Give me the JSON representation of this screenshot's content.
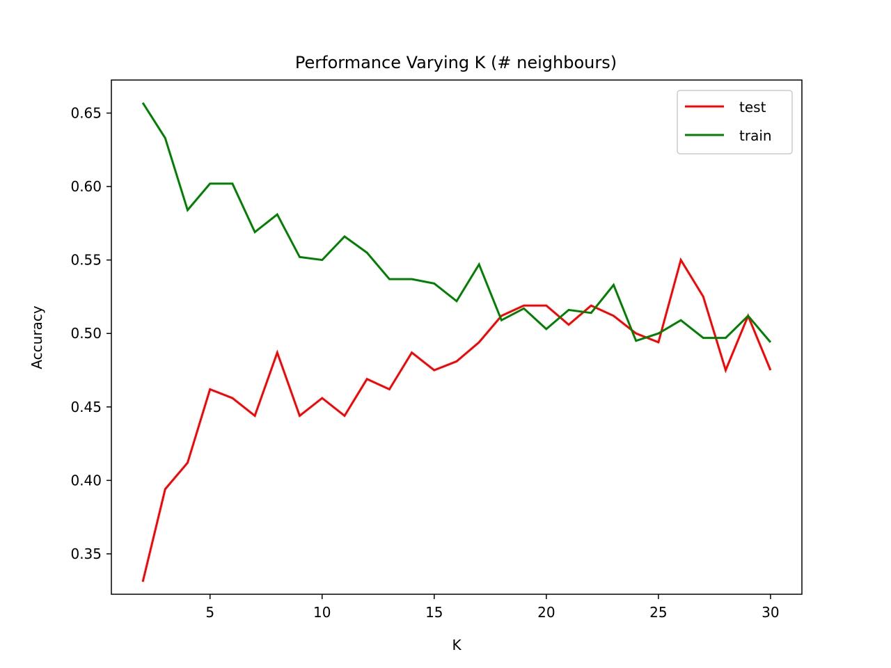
{
  "chart_data": {
    "type": "line",
    "title": "Performance Varying K (# neighbours)",
    "xlabel": "K",
    "ylabel": "Accuracy",
    "xlim": [
      0.6,
      31.4
    ],
    "ylim": [
      0.3225,
      0.6725
    ],
    "xticks": [
      5,
      10,
      15,
      20,
      25,
      30
    ],
    "xtick_labels": [
      "5",
      "10",
      "15",
      "20",
      "25",
      "30"
    ],
    "yticks": [
      0.35,
      0.4,
      0.45,
      0.5,
      0.55,
      0.6,
      0.65
    ],
    "ytick_labels": [
      "0.35",
      "0.40",
      "0.45",
      "0.50",
      "0.55",
      "0.60",
      "0.65"
    ],
    "grid": false,
    "legend_position": "top-right",
    "x": [
      2,
      3,
      4,
      5,
      6,
      7,
      8,
      9,
      10,
      11,
      12,
      13,
      14,
      15,
      16,
      17,
      18,
      19,
      20,
      21,
      22,
      23,
      24,
      25,
      26,
      27,
      28,
      29,
      30
    ],
    "series": [
      {
        "name": "test",
        "color": "#ff0000",
        "values": [
          0.331,
          0.394,
          0.412,
          0.462,
          0.456,
          0.444,
          0.487,
          0.444,
          0.456,
          0.444,
          0.469,
          0.462,
          0.487,
          0.475,
          0.481,
          0.494,
          0.512,
          0.519,
          0.519,
          0.506,
          0.519,
          0.512,
          0.5,
          0.494,
          0.55,
          0.525,
          0.475,
          0.512,
          0.475
        ]
      },
      {
        "name": "train",
        "color": "#008000",
        "values": [
          0.657,
          0.633,
          0.584,
          0.602,
          0.602,
          0.569,
          0.581,
          0.552,
          0.55,
          0.566,
          0.555,
          0.537,
          0.537,
          0.534,
          0.522,
          0.547,
          0.509,
          0.517,
          0.503,
          0.516,
          0.514,
          0.533,
          0.495,
          0.5,
          0.509,
          0.497,
          0.497,
          0.512,
          0.494
        ]
      }
    ]
  }
}
